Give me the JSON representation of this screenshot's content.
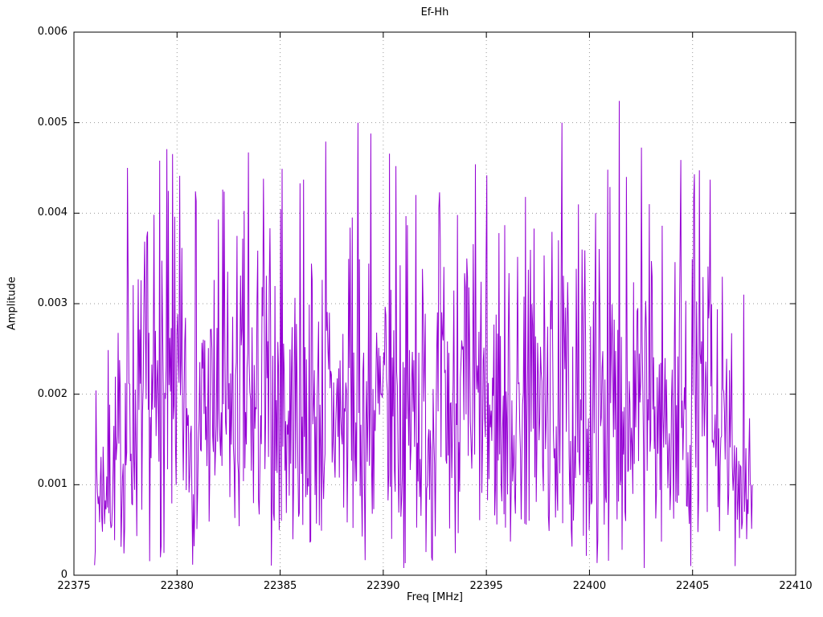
{
  "chart_data": {
    "type": "line",
    "title": "Ef-Hh",
    "xlabel": "Freq [MHz]",
    "ylabel": "Amplitude",
    "xlim": [
      22375,
      22410
    ],
    "ylim": [
      0,
      0.006
    ],
    "grid": true,
    "legend": false,
    "line_color": "#9400D3",
    "grid_color": "#9a9a9a",
    "border_color": "#000000",
    "background": "#FFFFFF",
    "x_ticks": {
      "values": [
        22375,
        22380,
        22385,
        22390,
        22395,
        22400,
        22405,
        22410
      ],
      "labels": [
        "22375",
        "22380",
        "22385",
        "22390",
        "22395",
        "22400",
        "22405",
        "22410"
      ]
    },
    "y_ticks": {
      "values": [
        0,
        0.001,
        0.002,
        0.003,
        0.004,
        0.005,
        0.006
      ],
      "labels": [
        "0",
        "0.001",
        "0.002",
        "0.003",
        "0.004",
        "0.005",
        "0.006"
      ]
    },
    "series": [
      {
        "name": "Ef-Hh",
        "x_start": 22376.0,
        "x_end": 22407.9,
        "n_points": 920,
        "model": "rayleigh-noise",
        "sigma": 0.00145,
        "clamp": [
          8e-05,
          0.005
        ],
        "seed": 7,
        "envelope": [
          [
            22376.0,
            0.5
          ],
          [
            22377.2,
            0.72
          ],
          [
            22377.8,
            1.0
          ],
          [
            22405.6,
            1.0
          ],
          [
            22406.6,
            0.8
          ],
          [
            22407.9,
            0.55
          ]
        ],
        "peaks": [
          [
            22377.6,
            0.0045
          ],
          [
            22379.15,
            0.00458
          ],
          [
            22379.9,
            0.00396
          ],
          [
            22380.9,
            0.00424
          ],
          [
            22382.2,
            0.00426
          ],
          [
            22383.45,
            0.00467
          ],
          [
            22384.2,
            0.00438
          ],
          [
            22385.1,
            0.00449
          ],
          [
            22386.15,
            0.00437
          ],
          [
            22387.2,
            0.00479
          ],
          [
            22388.4,
            0.00384
          ],
          [
            22389.4,
            0.00488
          ],
          [
            22390.6,
            0.00452
          ],
          [
            22391.6,
            0.0042
          ],
          [
            22392.7,
            0.00405
          ],
          [
            22393.6,
            0.00398
          ],
          [
            22394.45,
            0.00454
          ],
          [
            22395.6,
            0.00378
          ],
          [
            22396.9,
            0.00418
          ],
          [
            22397.3,
            0.00383
          ],
          [
            22398.5,
            0.0037
          ],
          [
            22400.3,
            0.004
          ],
          [
            22400.9,
            0.00448
          ],
          [
            22401.45,
            0.00524
          ],
          [
            22401.8,
            0.0044
          ],
          [
            22402.9,
            0.0041
          ],
          [
            22404.4,
            0.00362
          ],
          [
            22405.1,
            0.00443
          ],
          [
            22405.85,
            0.00437
          ],
          [
            22407.5,
            0.0031
          ]
        ]
      }
    ]
  }
}
